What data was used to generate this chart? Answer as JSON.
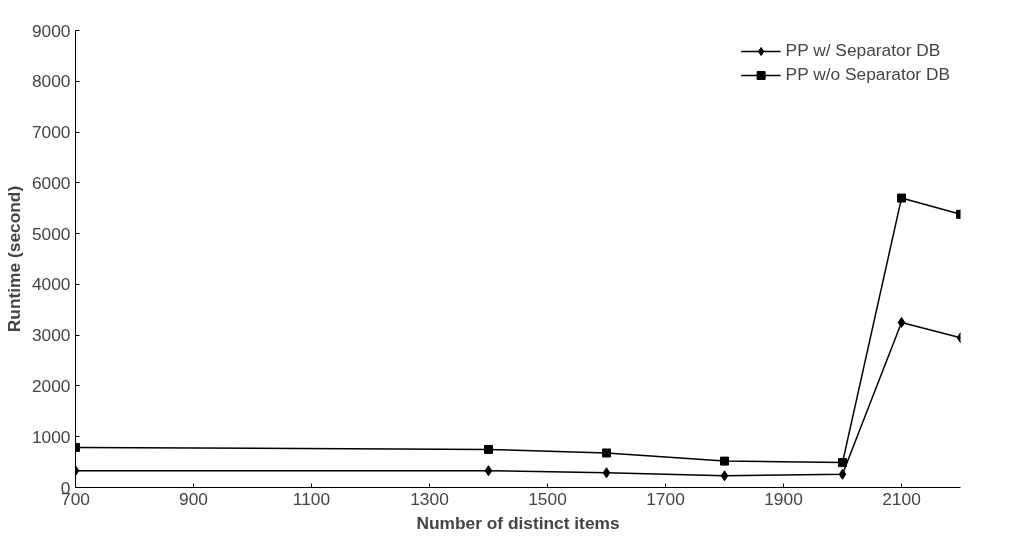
{
  "chart_data": {
    "type": "line",
    "xlabel": "Number of distinct items",
    "ylabel": "Runtime (second)",
    "x": [
      700,
      1400,
      1600,
      1800,
      2000,
      2100,
      2200
    ],
    "series": [
      {
        "name": "PP w/ Separator DB",
        "color": "#000000",
        "marker": "diamond",
        "values": [
          330,
          330,
          290,
          230,
          260,
          3250,
          2950
        ]
      },
      {
        "name": "PP w/o Separator DB",
        "color": "#000000",
        "marker": "square",
        "values": [
          790,
          750,
          680,
          520,
          490,
          5700,
          5380
        ]
      }
    ],
    "xlim": [
      700,
      2200
    ],
    "xticks": [
      700,
      900,
      1100,
      1300,
      1500,
      1700,
      1900,
      2100
    ],
    "ylim": [
      0,
      9000
    ],
    "yticks": [
      0,
      1000,
      2000,
      3000,
      4000,
      5000,
      6000,
      7000,
      8000,
      9000
    ],
    "grid": false,
    "legend": "top right",
    "line_style": "solid"
  }
}
